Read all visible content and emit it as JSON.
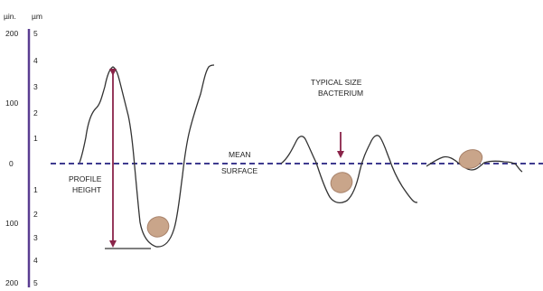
{
  "axis": {
    "unit_left": "µin.",
    "unit_right": "µm",
    "ticks_uin_above": [
      "200",
      "100"
    ],
    "ticks_um_above": [
      "5",
      "4",
      "3",
      "2",
      "1"
    ],
    "tick_zero": "0",
    "ticks_um_below": [
      "1",
      "2",
      "3",
      "4",
      "5"
    ],
    "ticks_uin_below": [
      "100",
      "200"
    ]
  },
  "labels": {
    "mean_surface": [
      "MEAN",
      "SURFACE"
    ],
    "profile_height": [
      "PROFILE",
      "HEIGHT"
    ],
    "typical_size_bacterium": [
      "TYPICAL SIZE",
      "BACTERIUM"
    ]
  },
  "colors": {
    "axis": "#5a3d91",
    "mean_line": "#3f3b8f",
    "arrow": "#8a2449",
    "profile": "#333333",
    "bacterium_fill": "#c9a58a",
    "bacterium_stroke": "#a8826a"
  }
}
